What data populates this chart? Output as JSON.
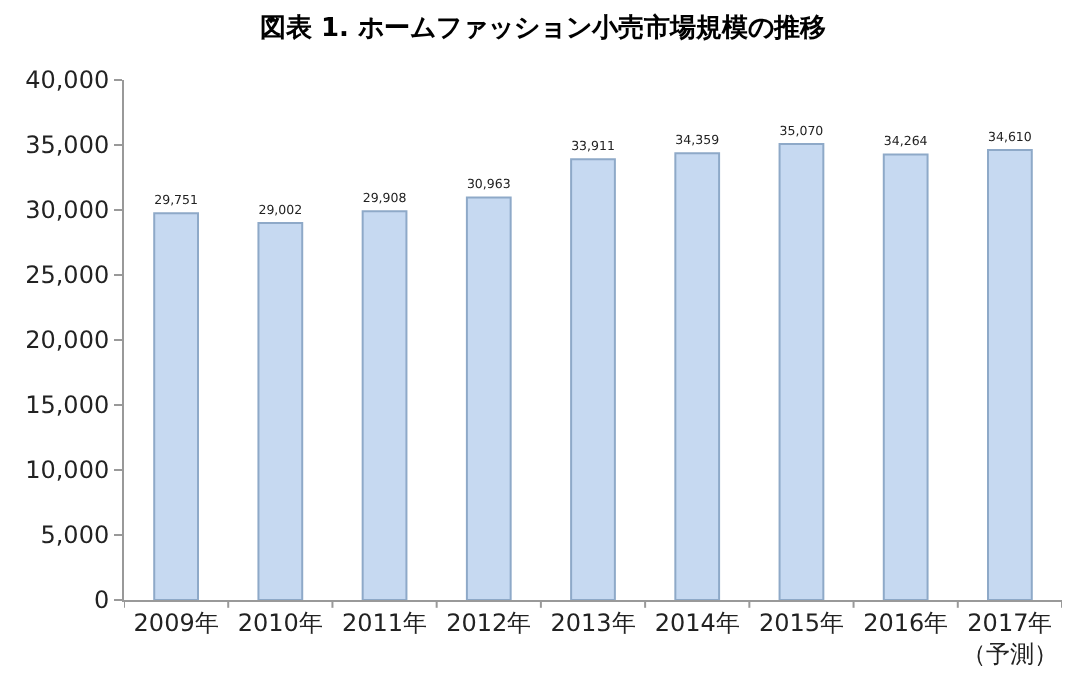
{
  "chart_data": {
    "type": "bar",
    "title": "図表 1. ホームファッション小売市場規模の推移",
    "categories": [
      "2009年",
      "2010年",
      "2011年",
      "2012年",
      "2013年",
      "2014年",
      "2015年",
      "2016年",
      "2017年（予測）"
    ],
    "values": [
      29751,
      29002,
      29908,
      30963,
      33911,
      34359,
      35070,
      34264,
      34610
    ],
    "color": "#c6d9f1",
    "value_labels": [
      "29,751",
      "29,002",
      "29,908",
      "30,963",
      "33,911",
      "34,359",
      "35,070",
      "34,264",
      "34,610"
    ],
    "ylim": [
      0,
      40000
    ],
    "yticks": [
      {
        "value": 0,
        "label": "0"
      },
      {
        "value": 5000,
        "label": "5,000"
      },
      {
        "value": 10000,
        "label": "10,000"
      },
      {
        "value": 15000,
        "label": "15,000"
      },
      {
        "value": 20000,
        "label": "20,000"
      },
      {
        "value": 25000,
        "label": "25,000"
      },
      {
        "value": 30000,
        "label": "30,000"
      },
      {
        "value": 35000,
        "label": "35,000"
      },
      {
        "value": 40000,
        "label": "40,000"
      }
    ]
  }
}
